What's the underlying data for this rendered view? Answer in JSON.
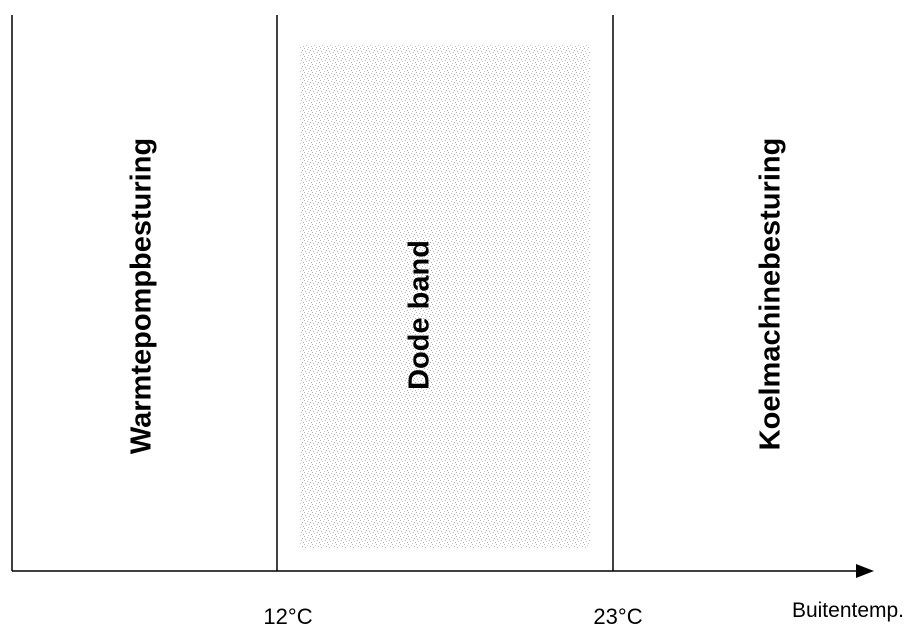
{
  "zones": [
    {
      "label": "Warmtepompbesturing"
    },
    {
      "label": "Dode band"
    },
    {
      "label": "Koelmachinebesturing"
    }
  ],
  "thresholds": [
    {
      "label": "12°C"
    },
    {
      "label": "23°C"
    }
  ],
  "axis": {
    "label": "Buitentemp."
  },
  "colors": {
    "line": "#000000",
    "dead_band_fill": "#d8d8d8",
    "background": "#ffffff"
  }
}
